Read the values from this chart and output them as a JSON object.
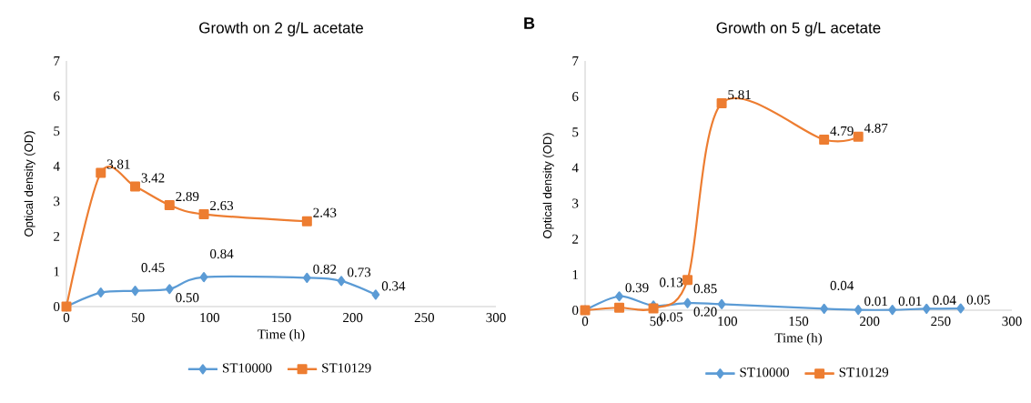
{
  "chart_data": [
    {
      "type": "line",
      "title": "Growth on 2 g/L acetate",
      "xlabel": "Time (h)",
      "ylabel": "Optical density (OD)",
      "xlim": [
        0,
        300
      ],
      "ylim": [
        0,
        7
      ],
      "xticks": [
        0,
        50,
        100,
        150,
        200,
        250,
        300
      ],
      "yticks": [
        0,
        1,
        2,
        3,
        4,
        5,
        6,
        7
      ],
      "legend": "bottom",
      "grid": false,
      "line_style": "solid",
      "series": [
        {
          "name": "ST10000",
          "color": "#5b9bd5",
          "marker": "diamond",
          "x": [
            0,
            24,
            48,
            72,
            96,
            168,
            192,
            216
          ],
          "values": [
            0,
            0.4,
            0.45,
            0.5,
            0.84,
            0.82,
            0.73,
            0.34
          ],
          "value_labels": [
            null,
            null,
            "0.45",
            "0.50",
            "0.84",
            "0.82",
            "0.73",
            "0.34"
          ]
        },
        {
          "name": "ST10129",
          "color": "#ed7d31",
          "marker": "square",
          "x": [
            0,
            24,
            48,
            72,
            96,
            168
          ],
          "values": [
            0,
            3.81,
            3.42,
            2.89,
            2.63,
            2.43
          ],
          "value_labels": [
            null,
            "3.81",
            "3.42",
            "2.89",
            "2.63",
            "2.43"
          ]
        }
      ]
    },
    {
      "type": "line",
      "title": "Growth on 5 g/L acetate",
      "xlabel": "Time (h)",
      "ylabel": "Optical density (OD)",
      "xlim": [
        0,
        300
      ],
      "ylim": [
        0,
        7
      ],
      "xticks": [
        0,
        50,
        100,
        150,
        200,
        250,
        300
      ],
      "yticks": [
        0,
        1,
        2,
        3,
        4,
        5,
        6,
        7
      ],
      "legend": "bottom",
      "grid": false,
      "line_style": "solid",
      "annotations": [
        "B"
      ],
      "series": [
        {
          "name": "ST10000",
          "color": "#5b9bd5",
          "marker": "diamond",
          "x": [
            0,
            24,
            48,
            72,
            96,
            168,
            192,
            216,
            240,
            264
          ],
          "values": [
            0,
            0.39,
            0.13,
            0.2,
            0.17,
            0.04,
            0.01,
            0.01,
            0.04,
            0.05
          ],
          "value_labels": [
            null,
            "0.39",
            "0.13",
            "0.20",
            null,
            "0.04",
            "0.01",
            "0.01",
            "0.04",
            "0.05"
          ]
        },
        {
          "name": "ST10129",
          "color": "#ed7d31",
          "marker": "square",
          "x": [
            0,
            24,
            48,
            72,
            96,
            168,
            192
          ],
          "values": [
            0,
            0.07,
            0.05,
            0.85,
            5.81,
            4.79,
            4.87
          ],
          "value_labels": [
            null,
            null,
            "0.05",
            "0.85",
            "5.81",
            "4.79",
            "4.87"
          ]
        }
      ]
    }
  ]
}
